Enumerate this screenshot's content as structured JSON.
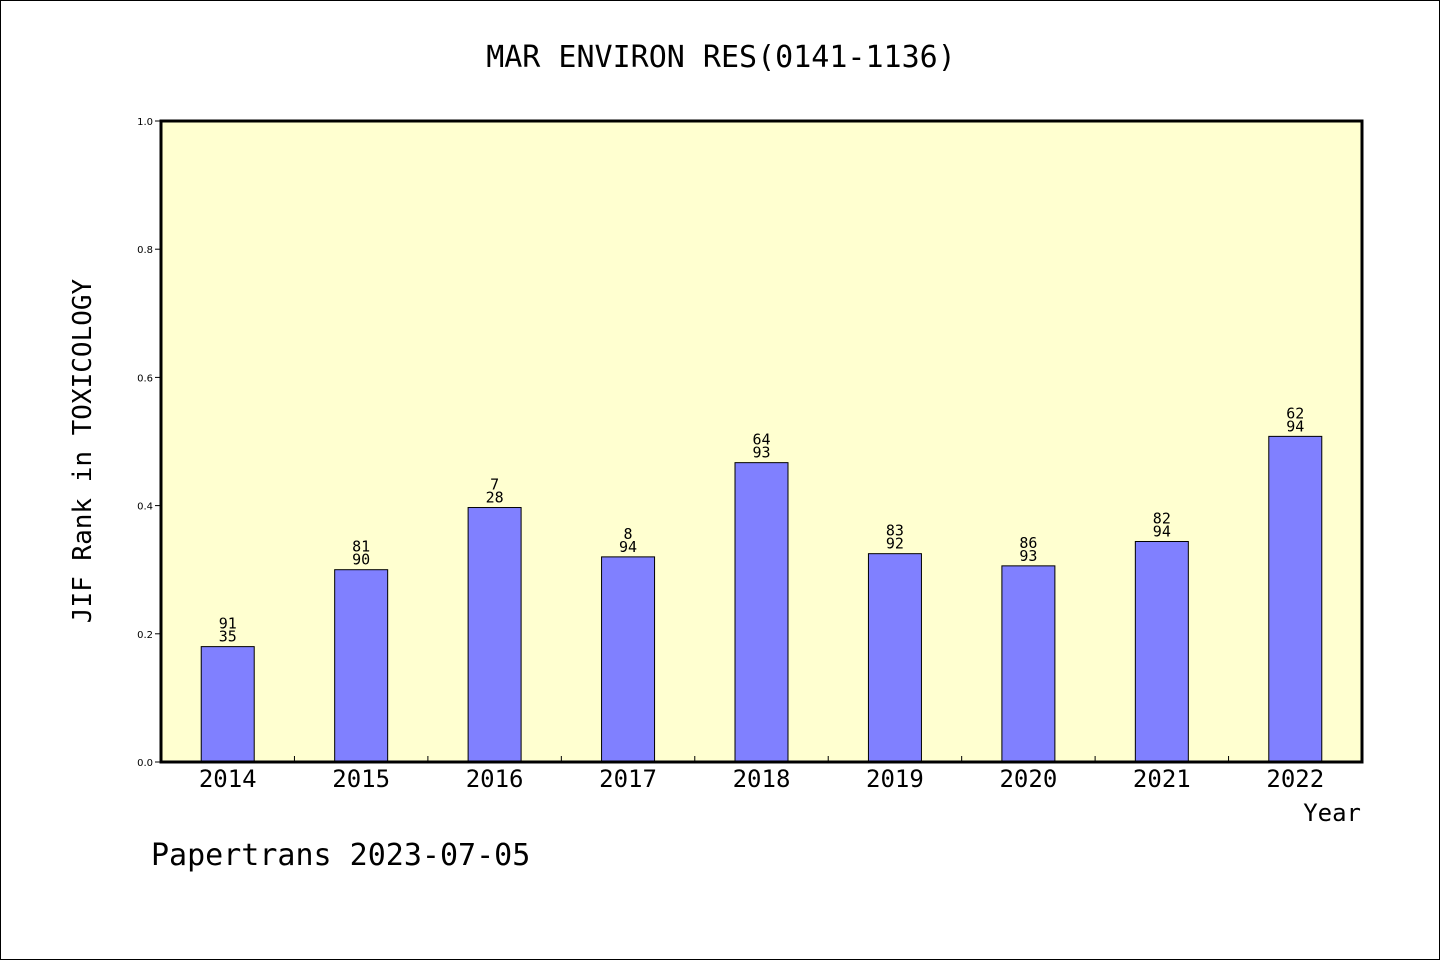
{
  "chart_data": {
    "type": "bar",
    "title": "MAR ENVIRON RES(0141-1136)",
    "xlabel": "Year",
    "ylabel": "JIF Rank in TOXICOLOGY",
    "ylim": [
      0,
      1.0
    ],
    "yticks": [
      "0.0",
      "0.2",
      "0.4",
      "0.6",
      "0.8",
      "1.0"
    ],
    "categories": [
      "2014",
      "2015",
      "2016",
      "2017",
      "2018",
      "2019",
      "2020",
      "2021",
      "2022"
    ],
    "values": [
      0.18,
      0.3,
      0.397,
      0.32,
      0.467,
      0.325,
      0.306,
      0.344,
      0.508
    ],
    "bar_labels": [
      {
        "top": "91",
        "bottom": "35"
      },
      {
        "top": "81",
        "bottom": "90"
      },
      {
        "top": "7",
        "bottom": "28"
      },
      {
        "top": "8",
        "bottom": "94"
      },
      {
        "top": "64",
        "bottom": "93"
      },
      {
        "top": "83",
        "bottom": "92"
      },
      {
        "top": "86",
        "bottom": "93"
      },
      {
        "top": "82",
        "bottom": "94"
      },
      {
        "top": "62",
        "bottom": "94"
      }
    ],
    "grid": false,
    "colors": {
      "bar": "#8080ff",
      "plot_background": "#ffffd0"
    }
  },
  "footer": "Papertrans 2023-07-05"
}
